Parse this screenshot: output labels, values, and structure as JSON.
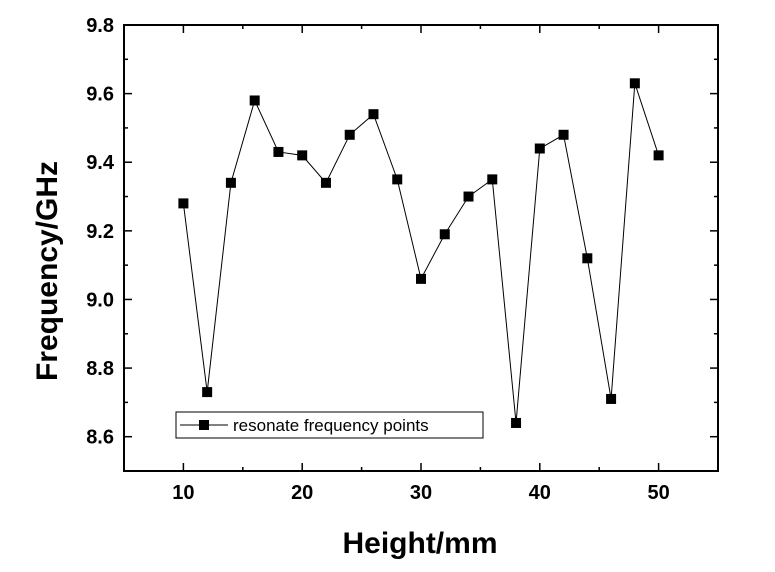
{
  "chart_data": {
    "type": "line",
    "title": "",
    "xlabel": "Height/mm",
    "ylabel": "Frequency/GHz",
    "xlim": [
      5,
      55
    ],
    "ylim": [
      8.5,
      9.8
    ],
    "xticks": [
      10,
      20,
      30,
      40,
      50
    ],
    "xtick_labels": [
      "10",
      "20",
      "30",
      "40",
      "50"
    ],
    "yticks": [
      8.6,
      8.8,
      9.0,
      9.2,
      9.4,
      9.6,
      9.8
    ],
    "ytick_labels": [
      "8.6",
      "8.8",
      "9.0",
      "9.2",
      "9.4",
      "9.6",
      "9.8"
    ],
    "grid": false,
    "legend_position": "bottom-left",
    "series": [
      {
        "name": "resonate frequency points",
        "color": "#000000",
        "marker": "square",
        "x": [
          10,
          12,
          14,
          16,
          18,
          20,
          22,
          24,
          26,
          28,
          30,
          32,
          34,
          36,
          38,
          40,
          42,
          44,
          46,
          48,
          50
        ],
        "y": [
          9.28,
          8.73,
          9.34,
          9.58,
          9.43,
          9.42,
          9.34,
          9.48,
          9.54,
          9.35,
          9.06,
          9.19,
          9.3,
          9.35,
          8.64,
          9.44,
          9.48,
          9.12,
          8.71,
          9.63,
          9.42
        ]
      }
    ]
  }
}
